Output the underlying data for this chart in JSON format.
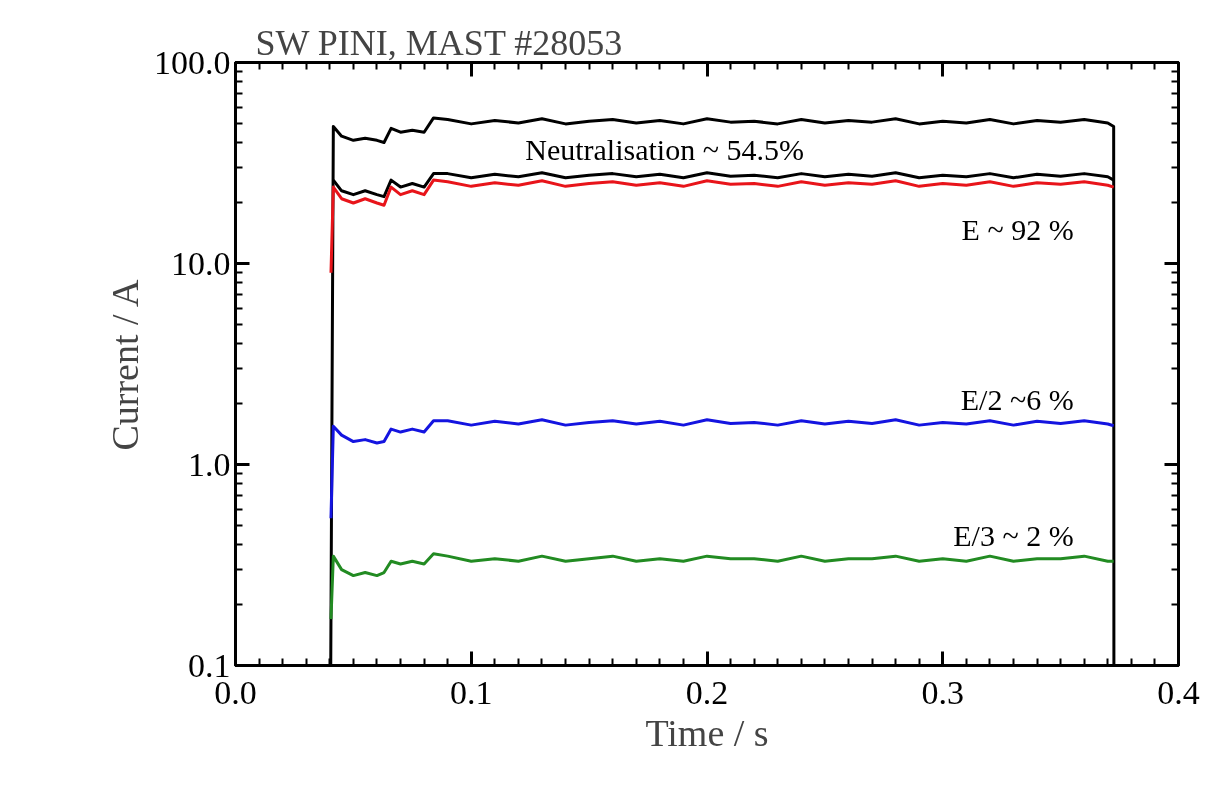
{
  "chart_data": {
    "type": "line",
    "title": "SW PINI, MAST #28053",
    "xlabel": "Time / s",
    "ylabel": "Current / A",
    "log": "y",
    "grid": false,
    "legend": false,
    "marker": "none",
    "line_style": "solid",
    "xlim": [
      0,
      0.4
    ],
    "ylim": [
      0.1,
      100
    ],
    "xticks": [
      {
        "value": 0,
        "label": "0.0"
      },
      {
        "value": 0.1,
        "label": "0.1"
      },
      {
        "value": 0.2,
        "label": "0.2"
      },
      {
        "value": 0.3,
        "label": "0.3"
      },
      {
        "value": 0.4,
        "label": "0.4"
      }
    ],
    "yticks": [
      {
        "value": 0.1,
        "label": "0.1"
      },
      {
        "value": 1,
        "label": "1.0"
      },
      {
        "value": 10,
        "label": "10.0"
      },
      {
        "value": 100,
        "label": "100.0"
      }
    ],
    "series": [
      {
        "color": "#000000",
        "x": [
          0.0404,
          0.0415,
          0.045,
          0.05,
          0.055,
          0.06,
          0.063,
          0.066,
          0.07,
          0.075,
          0.08,
          0.084,
          0.09,
          0.1,
          0.11,
          0.12,
          0.13,
          0.14,
          0.15,
          0.16,
          0.17,
          0.18,
          0.19,
          0.2,
          0.21,
          0.22,
          0.23,
          0.24,
          0.25,
          0.26,
          0.27,
          0.28,
          0.29,
          0.3,
          0.31,
          0.32,
          0.33,
          0.34,
          0.35,
          0.36,
          0.37,
          0.3725,
          0.3726
        ],
        "values": [
          0.1,
          48,
          43,
          41,
          42,
          41,
          40,
          47,
          45,
          46,
          45,
          53,
          52,
          49.5,
          51.5,
          50,
          52.5,
          49.5,
          51,
          52,
          50,
          51.5,
          49.5,
          52.5,
          50.5,
          51,
          49.5,
          52,
          50,
          51.5,
          50.5,
          52.5,
          49.5,
          51,
          50,
          52,
          49.5,
          51.5,
          50.5,
          52,
          50,
          48,
          0.1
        ]
      },
      {
        "color": "#000000",
        "x": [
          0.0415,
          0.045,
          0.05,
          0.055,
          0.06,
          0.063,
          0.066,
          0.07,
          0.075,
          0.08,
          0.084,
          0.09,
          0.1,
          0.11,
          0.12,
          0.13,
          0.14,
          0.15,
          0.16,
          0.17,
          0.18,
          0.19,
          0.2,
          0.21,
          0.22,
          0.23,
          0.24,
          0.25,
          0.26,
          0.27,
          0.28,
          0.29,
          0.3,
          0.31,
          0.32,
          0.33,
          0.34,
          0.35,
          0.36,
          0.37,
          0.3725
        ],
        "values": [
          26,
          23,
          22,
          23,
          22,
          21.5,
          26,
          24,
          25,
          24,
          28,
          28,
          26.7,
          27.8,
          27,
          28.3,
          26.7,
          27.5,
          28,
          27,
          27.8,
          26.7,
          28.3,
          27.2,
          27.5,
          26.7,
          28,
          27,
          27.8,
          27.2,
          28.3,
          26.7,
          27.5,
          27,
          28,
          26.7,
          27.8,
          27.2,
          28,
          27,
          26
        ]
      },
      {
        "name": "E ~ 92 %",
        "color": "#e8141a",
        "x": [
          0.0405,
          0.0415,
          0.045,
          0.05,
          0.055,
          0.06,
          0.063,
          0.066,
          0.07,
          0.075,
          0.08,
          0.084,
          0.09,
          0.1,
          0.11,
          0.12,
          0.13,
          0.14,
          0.15,
          0.16,
          0.17,
          0.18,
          0.19,
          0.2,
          0.21,
          0.22,
          0.23,
          0.24,
          0.25,
          0.26,
          0.27,
          0.28,
          0.29,
          0.3,
          0.31,
          0.32,
          0.33,
          0.34,
          0.35,
          0.36,
          0.37,
          0.3725
        ],
        "values": [
          9,
          24,
          21,
          20,
          21,
          20,
          19.5,
          24,
          22,
          23,
          22,
          26,
          25.5,
          24.2,
          25.2,
          24.5,
          25.8,
          24.2,
          25,
          25.5,
          24.5,
          25.2,
          24.2,
          25.8,
          24.8,
          25,
          24.2,
          25.5,
          24.5,
          25.2,
          24.8,
          25.8,
          24.2,
          25,
          24.5,
          25.5,
          24.2,
          25.2,
          24.8,
          25.5,
          24.5,
          24
        ]
      },
      {
        "name": "E/2 ~6 %",
        "color": "#1414e0",
        "x": [
          0.0405,
          0.0415,
          0.045,
          0.05,
          0.055,
          0.06,
          0.063,
          0.066,
          0.07,
          0.075,
          0.08,
          0.084,
          0.09,
          0.1,
          0.11,
          0.12,
          0.13,
          0.14,
          0.15,
          0.16,
          0.17,
          0.18,
          0.19,
          0.2,
          0.21,
          0.22,
          0.23,
          0.24,
          0.25,
          0.26,
          0.27,
          0.28,
          0.29,
          0.3,
          0.31,
          0.32,
          0.33,
          0.34,
          0.35,
          0.36,
          0.37,
          0.3725
        ],
        "values": [
          0.54,
          1.55,
          1.4,
          1.3,
          1.33,
          1.28,
          1.3,
          1.5,
          1.45,
          1.5,
          1.45,
          1.65,
          1.65,
          1.57,
          1.64,
          1.59,
          1.67,
          1.57,
          1.62,
          1.65,
          1.59,
          1.64,
          1.57,
          1.67,
          1.6,
          1.62,
          1.57,
          1.65,
          1.59,
          1.64,
          1.6,
          1.67,
          1.57,
          1.62,
          1.59,
          1.65,
          1.57,
          1.64,
          1.6,
          1.65,
          1.59,
          1.56
        ]
      },
      {
        "name": "E/3 ~ 2 %",
        "color": "#228b22",
        "x": [
          0.0405,
          0.0415,
          0.045,
          0.05,
          0.055,
          0.06,
          0.063,
          0.066,
          0.07,
          0.075,
          0.08,
          0.084,
          0.09,
          0.1,
          0.11,
          0.12,
          0.13,
          0.14,
          0.15,
          0.16,
          0.17,
          0.18,
          0.19,
          0.2,
          0.21,
          0.22,
          0.23,
          0.24,
          0.25,
          0.26,
          0.27,
          0.28,
          0.29,
          0.3,
          0.31,
          0.32,
          0.33,
          0.34,
          0.35,
          0.36,
          0.37,
          0.3725
        ],
        "values": [
          0.17,
          0.35,
          0.3,
          0.28,
          0.29,
          0.28,
          0.29,
          0.33,
          0.32,
          0.33,
          0.32,
          0.36,
          0.35,
          0.33,
          0.34,
          0.33,
          0.35,
          0.33,
          0.34,
          0.35,
          0.33,
          0.34,
          0.33,
          0.35,
          0.34,
          0.34,
          0.33,
          0.35,
          0.33,
          0.34,
          0.34,
          0.35,
          0.33,
          0.34,
          0.33,
          0.35,
          0.33,
          0.34,
          0.34,
          0.35,
          0.33,
          0.33
        ]
      }
    ],
    "annotations": [
      "Neutralisation ~ 54.5%"
    ]
  }
}
